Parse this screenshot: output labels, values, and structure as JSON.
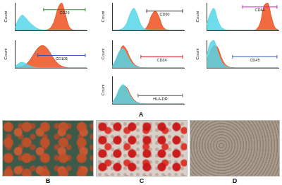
{
  "chart_data": [
    {
      "type": "line",
      "y_label": "Count",
      "xlim": [
        0,
        5
      ],
      "ylim": [
        0,
        100
      ],
      "tick_labels": false,
      "grid": false,
      "x": [
        0,
        0.25,
        0.5,
        0.75,
        1,
        1.25,
        1.5,
        1.75,
        2,
        2.25,
        2.5,
        2.75,
        3,
        3.25,
        3.5,
        3.75,
        4,
        4.25,
        4.5,
        4.75,
        5
      ],
      "series": [
        {
          "color": "#55d6e8",
          "values": [
            10,
            40,
            55,
            45,
            30,
            18,
            8,
            3,
            1,
            0,
            0,
            0,
            0,
            0,
            0,
            0,
            0,
            0,
            0,
            0,
            0
          ]
        },
        {
          "color": "#f0501e",
          "values": [
            0,
            0,
            0,
            0,
            0,
            0,
            0,
            0,
            0,
            2,
            10,
            35,
            80,
            100,
            60,
            15,
            2,
            0,
            0,
            0,
            0
          ]
        }
      ],
      "gate": {
        "label": "CD29",
        "from": 2.0,
        "to": 4.9,
        "at": 75,
        "color": "#2e8b2e"
      }
    },
    {
      "type": "line",
      "y_label": "Count",
      "xlim": [
        0,
        5
      ],
      "ylim": [
        0,
        100
      ],
      "tick_labels": false,
      "grid": false,
      "x": [
        0,
        0.25,
        0.5,
        0.75,
        1,
        1.25,
        1.5,
        1.75,
        2,
        2.25,
        2.5,
        2.75,
        3,
        3.25,
        3.5,
        3.75,
        4,
        4.25,
        4.5,
        4.75,
        5
      ],
      "series": [
        {
          "color": "#55d6e8",
          "values": [
            0,
            0,
            2,
            8,
            25,
            60,
            80,
            55,
            20,
            5,
            1,
            0,
            0,
            0,
            0,
            0,
            0,
            0,
            0,
            0,
            0
          ]
        },
        {
          "color": "#f0501e",
          "values": [
            0,
            0,
            0,
            0,
            0,
            0,
            0,
            0,
            0,
            3,
            20,
            55,
            70,
            50,
            15,
            3,
            0,
            0,
            0,
            0,
            0
          ]
        }
      ],
      "gate": {
        "label": "CD90",
        "from": 2.4,
        "to": 4.9,
        "at": 70,
        "color": "#333333"
      }
    },
    {
      "type": "line",
      "y_label": "Count",
      "xlim": [
        0,
        5
      ],
      "ylim": [
        0,
        100
      ],
      "tick_labels": false,
      "grid": false,
      "x": [
        0,
        0.25,
        0.5,
        0.75,
        1,
        1.25,
        1.5,
        1.75,
        2,
        2.25,
        2.5,
        2.75,
        3,
        3.25,
        3.5,
        3.75,
        4,
        4.25,
        4.5,
        4.75,
        5
      ],
      "series": [
        {
          "color": "#55d6e8",
          "values": [
            20,
            60,
            80,
            40,
            12,
            3,
            0,
            0,
            0,
            0,
            0,
            0,
            0,
            0,
            0,
            0,
            0,
            0,
            0,
            0,
            0
          ]
        },
        {
          "color": "#f0501e",
          "values": [
            0,
            0,
            0,
            0,
            0,
            0,
            0,
            0,
            0,
            0,
            0,
            0,
            0,
            0,
            5,
            30,
            90,
            100,
            50,
            10,
            1
          ]
        }
      ],
      "gate": {
        "label": "CD44",
        "from": 2.5,
        "to": 4.9,
        "at": 85,
        "color": "#d020c0"
      }
    },
    {
      "type": "line",
      "y_label": "Count",
      "xlim": [
        0,
        5
      ],
      "ylim": [
        0,
        100
      ],
      "tick_labels": false,
      "grid": false,
      "x": [
        0,
        0.25,
        0.5,
        0.75,
        1,
        1.25,
        1.5,
        1.75,
        2,
        2.25,
        2.5,
        2.75,
        3,
        3.25,
        3.5,
        3.75,
        4,
        4.25,
        4.5,
        4.75,
        5
      ],
      "series": [
        {
          "color": "#55d6e8",
          "values": [
            5,
            15,
            20,
            15,
            8,
            3,
            1,
            0,
            0,
            0,
            0,
            0,
            0,
            0,
            0,
            0,
            0,
            0,
            0,
            0,
            0
          ]
        },
        {
          "color": "#f0501e",
          "values": [
            0,
            2,
            5,
            12,
            25,
            45,
            65,
            78,
            80,
            70,
            50,
            30,
            15,
            6,
            2,
            0,
            0,
            0,
            0,
            0,
            0
          ]
        }
      ],
      "gate": {
        "label": "CD105",
        "from": 1.6,
        "to": 4.9,
        "at": 45,
        "color": "#3050c0"
      }
    },
    {
      "type": "line",
      "y_label": "Count",
      "xlim": [
        0,
        5
      ],
      "ylim": [
        0,
        100
      ],
      "tick_labels": false,
      "grid": false,
      "x": [
        0,
        0.25,
        0.5,
        0.75,
        1,
        1.25,
        1.5,
        1.75,
        2,
        2.25,
        2.5,
        2.75,
        3,
        3.25,
        3.5,
        3.75,
        4,
        4.25,
        4.5,
        4.75,
        5
      ],
      "series": [
        {
          "color": "#55d6e8",
          "values": [
            5,
            30,
            60,
            70,
            50,
            25,
            10,
            3,
            1,
            0,
            0,
            0,
            0,
            0,
            0,
            0,
            0,
            0,
            0,
            0,
            0
          ]
        },
        {
          "color": "#f0501e",
          "values": [
            3,
            25,
            55,
            80,
            65,
            35,
            15,
            5,
            1,
            0,
            0,
            0,
            0,
            0,
            0,
            0,
            0,
            0,
            0,
            0,
            0
          ]
        }
      ],
      "gate": {
        "label": "CD34",
        "from": 2.0,
        "to": 4.9,
        "at": 40,
        "color": "#d02020"
      }
    },
    {
      "type": "line",
      "y_label": "Count",
      "xlim": [
        0,
        5
      ],
      "ylim": [
        0,
        100
      ],
      "tick_labels": false,
      "grid": false,
      "x": [
        0,
        0.25,
        0.5,
        0.75,
        1,
        1.25,
        1.5,
        1.75,
        2,
        2.25,
        2.5,
        2.75,
        3,
        3.25,
        3.5,
        3.75,
        4,
        4.25,
        4.5,
        4.75,
        5
      ],
      "series": [
        {
          "color": "#55d6e8",
          "values": [
            40,
            90,
            100,
            60,
            25,
            8,
            2,
            0,
            0,
            0,
            0,
            0,
            0,
            0,
            0,
            0,
            0,
            0,
            0,
            0,
            0
          ]
        },
        {
          "color": "#f0501e",
          "values": [
            20,
            60,
            80,
            75,
            40,
            15,
            4,
            1,
            0,
            0,
            0,
            0,
            0,
            0,
            0,
            0,
            0,
            0,
            0,
            0,
            0
          ]
        }
      ],
      "gate": {
        "label": "CD45",
        "from": 1.8,
        "to": 4.9,
        "at": 40,
        "color": "#4060b0"
      }
    },
    {
      "type": "line",
      "y_label": "Count",
      "xlim": [
        0,
        5
      ],
      "ylim": [
        0,
        100
      ],
      "tick_labels": false,
      "grid": false,
      "x": [
        0,
        0.25,
        0.5,
        0.75,
        1,
        1.25,
        1.5,
        1.75,
        2,
        2.25,
        2.5,
        2.75,
        3,
        3.25,
        3.5,
        3.75,
        4,
        4.25,
        4.5,
        4.75,
        5
      ],
      "series": [
        {
          "color": "#55d6e8",
          "values": [
            5,
            25,
            55,
            70,
            55,
            30,
            12,
            4,
            1,
            0,
            0,
            0,
            0,
            0,
            0,
            0,
            0,
            0,
            0,
            0,
            0
          ]
        },
        {
          "color": "#f0501e",
          "values": [
            4,
            20,
            50,
            65,
            60,
            35,
            15,
            5,
            1,
            0,
            0,
            0,
            0,
            0,
            0,
            0,
            0,
            0,
            0,
            0,
            0
          ]
        }
      ],
      "gate": {
        "label": "HLA-DR",
        "from": 1.8,
        "to": 4.9,
        "at": 30,
        "color": "#666666"
      }
    }
  ],
  "panel_labels": [
    "A",
    "B",
    "C",
    "D"
  ]
}
